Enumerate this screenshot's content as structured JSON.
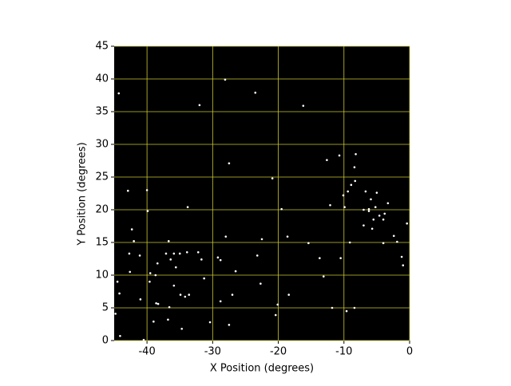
{
  "chart_data": {
    "type": "scatter",
    "xlabel": "X Position (degrees)",
    "ylabel": "Y Position (degrees)",
    "xlim": [
      -45,
      0
    ],
    "ylim": [
      0,
      45
    ],
    "xticks": [
      -40,
      -30,
      -20,
      -10,
      0
    ],
    "yticks": [
      0,
      5,
      10,
      15,
      20,
      25,
      30,
      35,
      40,
      45
    ],
    "grid": true,
    "grid_color": "#c8c832",
    "background": "#000000",
    "color": "#ffffff",
    "x": [
      -32.0,
      -28.1,
      -23.5,
      -16.2,
      -44.3,
      -42.9,
      -40.0,
      -39.9,
      -33.8,
      -27.5,
      -20.9,
      -19.5,
      -22.5,
      -28.0,
      -18.6,
      -15.4,
      -13.7,
      -13.1,
      -10.5,
      -8.3,
      -8.2,
      -8.4,
      -10.7,
      -9.9,
      -10.1,
      -9.4,
      -6.7,
      -5.9,
      -5.2,
      -6.2,
      -7.0,
      -4.6,
      -4.0,
      -5.5,
      -3.8,
      -1.9,
      -1.2,
      -1.0,
      -0.4,
      -4.0,
      -9.1,
      -8.4,
      -9.6,
      -11.8,
      -18.4,
      -20.1,
      -20.4,
      -22.7,
      -23.2,
      -26.5,
      -28.8,
      -29.2,
      -31.7,
      -31.3,
      -28.8,
      -27.0,
      -27.5,
      -30.4,
      -34.7,
      -36.8,
      -38.3,
      -39.0,
      -40.5,
      -44.1,
      -44.8,
      -44.2,
      -44.5,
      -41.0,
      -39.5,
      -39.6,
      -38.7,
      -38.4,
      -37.1,
      -36.4,
      -35.9,
      -35.6,
      -35.0,
      -33.9,
      -32.2,
      -36.7,
      -42.0,
      -41.1,
      -34.9,
      -34.2,
      -33.6,
      -35.9,
      -36.6,
      -38.6,
      -42.6,
      -42.3,
      -42.7,
      -12.6,
      -12.1,
      -8.9,
      -5.0,
      -3.3,
      -5.7,
      -7.0,
      -2.4,
      -6.2
    ],
    "y": [
      36.0,
      39.9,
      37.9,
      35.9,
      37.8,
      22.9,
      23.0,
      19.8,
      20.4,
      27.1,
      24.8,
      20.1,
      15.5,
      15.9,
      15.9,
      14.9,
      12.6,
      9.8,
      12.6,
      24.4,
      28.5,
      26.5,
      28.3,
      20.4,
      22.2,
      22.8,
      22.8,
      21.6,
      20.4,
      19.8,
      20.0,
      19.1,
      18.5,
      18.5,
      19.4,
      15.1,
      12.8,
      11.5,
      17.9,
      14.9,
      15.0,
      5.0,
      4.5,
      5.0,
      7.0,
      5.5,
      3.9,
      8.7,
      13.0,
      10.6,
      12.3,
      12.7,
      12.4,
      9.5,
      6.0,
      7.0,
      2.4,
      2.8,
      1.8,
      3.2,
      5.6,
      2.9,
      0.1,
      0.7,
      4.1,
      7.2,
      9.0,
      6.3,
      10.3,
      9.0,
      10.0,
      11.8,
      13.3,
      12.4,
      13.3,
      11.2,
      13.3,
      13.5,
      13.5,
      15.2,
      15.2,
      13.0,
      7.0,
      6.7,
      7.0,
      8.4,
      5.1,
      5.7,
      10.5,
      17.0,
      13.3,
      27.6,
      20.7,
      23.8,
      22.6,
      21.0,
      17.1,
      17.6,
      16.0,
      20.1
    ]
  }
}
